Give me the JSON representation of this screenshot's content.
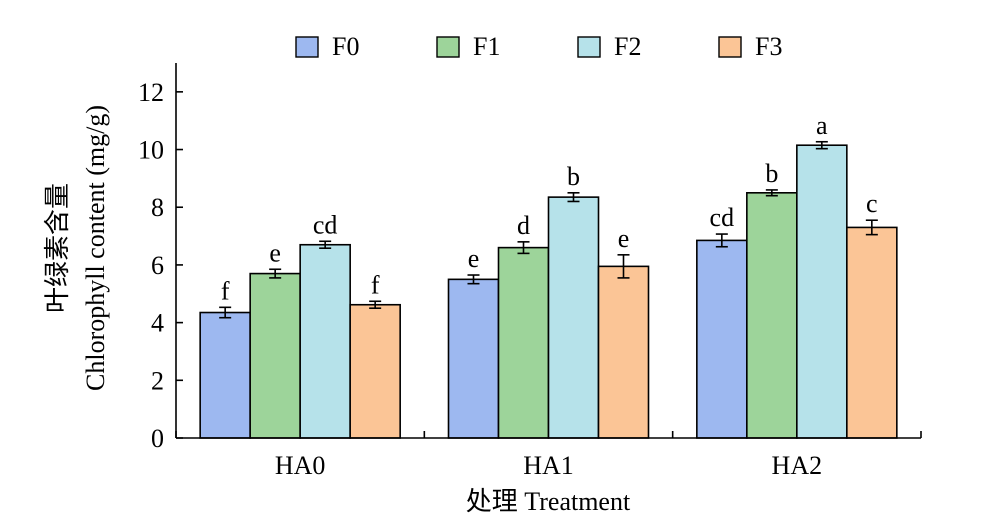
{
  "chart_data": {
    "type": "bar",
    "categories": [
      "HA0",
      "HA1",
      "HA2"
    ],
    "series": [
      {
        "name": "F0",
        "color": "#9DB8F0",
        "values": [
          4.35,
          5.5,
          6.85
        ],
        "errors": [
          0.18,
          0.15,
          0.22
        ],
        "letters": [
          "f",
          "e",
          "cd"
        ]
      },
      {
        "name": "F1",
        "color": "#9DD49A",
        "values": [
          5.7,
          6.6,
          8.5
        ],
        "errors": [
          0.15,
          0.2,
          0.1
        ],
        "letters": [
          "e",
          "d",
          "b"
        ]
      },
      {
        "name": "F2",
        "color": "#B6E2EA",
        "values": [
          6.7,
          8.35,
          10.15
        ],
        "errors": [
          0.12,
          0.15,
          0.12
        ],
        "letters": [
          "cd",
          "b",
          "a"
        ]
      },
      {
        "name": "F3",
        "color": "#FBC596",
        "values": [
          4.62,
          5.95,
          7.3
        ],
        "errors": [
          0.12,
          0.4,
          0.25
        ],
        "letters": [
          "f",
          "e",
          "c"
        ]
      }
    ],
    "ylim": [
      0,
      13
    ],
    "yticks": [
      0,
      2,
      4,
      6,
      8,
      10,
      12
    ],
    "ylabel_line1": "叶绿素含量",
    "ylabel_line2": "Chlorophyll content (mg/g)",
    "xlabel": "处理 Treatment",
    "legend_position": "top",
    "grid": false
  }
}
